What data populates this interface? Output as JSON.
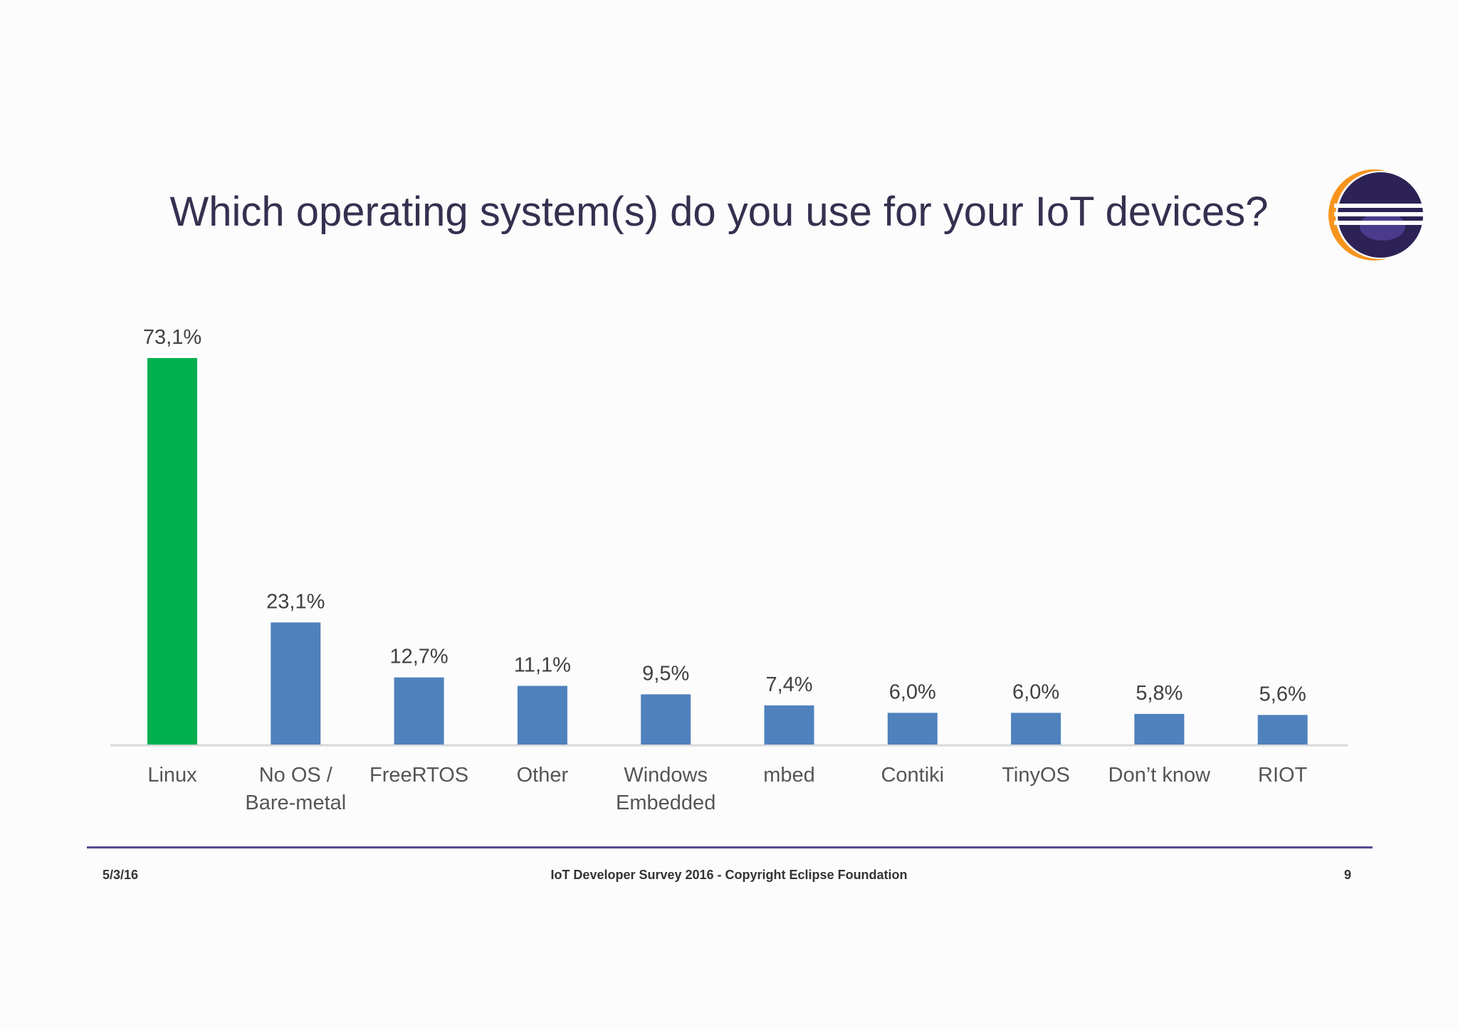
{
  "slide": {
    "title": "Which operating system(s) do you use for your IoT devices?"
  },
  "logo": {
    "icon": "eclipse-logo-icon",
    "colors": {
      "dark": "#2c2255",
      "accent": "#f7941e",
      "inner": "#4a3b8c"
    }
  },
  "chart_data": {
    "type": "bar",
    "categories": [
      "Linux",
      "No OS / Bare-metal",
      "FreeRTOS",
      "Other",
      "Windows Embedded",
      "mbed",
      "Contiki",
      "TinyOS",
      "Don’t know",
      "RIOT"
    ],
    "category_lines": [
      [
        "Linux"
      ],
      [
        "No OS /",
        "Bare-metal"
      ],
      [
        "FreeRTOS"
      ],
      [
        "Other"
      ],
      [
        "Windows",
        "Embedded"
      ],
      [
        "mbed"
      ],
      [
        "Contiki"
      ],
      [
        "TinyOS"
      ],
      [
        "Don’t know"
      ],
      [
        "RIOT"
      ]
    ],
    "values": [
      73.1,
      23.1,
      12.7,
      11.1,
      9.5,
      7.4,
      6.0,
      6.0,
      5.8,
      5.6
    ],
    "value_labels": [
      "73,1%",
      "23,1%",
      "12,7%",
      "11,1%",
      "9,5%",
      "7,4%",
      "6,0%",
      "6,0%",
      "5,8%",
      "5,6%"
    ],
    "colors": {
      "highlight": "#00b050",
      "default": "#4f81bd",
      "axis": "#d9d9d9"
    },
    "highlight_index": 0,
    "ylim": [
      0,
      73.1
    ],
    "grid": false,
    "legend": "none",
    "xlabel": "",
    "ylabel": ""
  },
  "footer": {
    "date": "5/3/16",
    "center": "IoT Developer Survey 2016 - Copyright Eclipse Foundation",
    "page": "9"
  }
}
